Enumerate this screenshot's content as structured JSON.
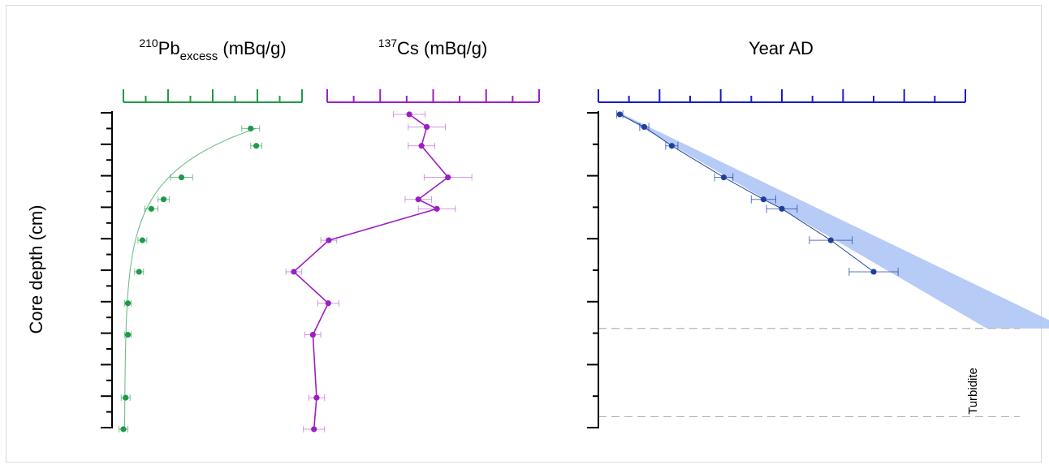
{
  "colors": {
    "pb": "#1f9a48",
    "cs": "#9b1fc2",
    "age": "#1a1acc",
    "age_points": "#1f3f9e",
    "band": "#a9c2f5",
    "axis": "#000000",
    "dash": "#b5b5b5"
  },
  "chart_data": [
    {
      "type": "scatter",
      "title_main": "Pb",
      "title_sup": "210",
      "title_sub": "excess",
      "title_unit": " (mBq/g)",
      "ylabel": "Core depth (cm)",
      "xlim": [
        0,
        80
      ],
      "ylim": [
        0,
        100
      ],
      "x_ticks": [
        "0",
        "20",
        "40",
        "60",
        "80"
      ],
      "y_ticks": [
        "0",
        "10",
        "20",
        "30",
        "40",
        "50",
        "60",
        "70",
        "80",
        "90",
        "100"
      ],
      "series": [
        {
          "depth": [
            5,
            10.5,
            20.5,
            27.5,
            30.5,
            40.5,
            50.5,
            60.5,
            70.5,
            90.5,
            100.5
          ],
          "value": [
            57,
            59.5,
            26,
            18,
            12.5,
            8.5,
            7,
            2,
            2,
            1,
            0
          ],
          "error": [
            4,
            2.5,
            5,
            2.5,
            3,
            2,
            2,
            1.5,
            1.5,
            2,
            2
          ]
        }
      ],
      "fit_curve": true
    },
    {
      "type": "line",
      "title_main": "Cs",
      "title_sup": "137",
      "title_unit": " (mBq/g)",
      "xlim": [
        0,
        4
      ],
      "ylim": [
        0,
        100
      ],
      "x_ticks": [
        "0",
        "1",
        "2",
        "3",
        "4"
      ],
      "series": [
        {
          "depth": [
            0.5,
            4.5,
            10.5,
            20.5,
            27.5,
            30.5,
            40.5,
            50.5,
            60.5,
            70.5,
            90.5,
            100.5
          ],
          "value": [
            1.55,
            1.88,
            1.78,
            2.28,
            1.72,
            2.07,
            0.03,
            -0.63,
            0.02,
            -0.27,
            -0.2,
            -0.25
          ],
          "error": [
            0.3,
            0.35,
            0.25,
            0.45,
            0.25,
            0.35,
            0.15,
            0.15,
            0.2,
            0.15,
            0.15,
            0.2
          ]
        }
      ]
    },
    {
      "type": "line",
      "title": "Year AD",
      "xlim": [
        2020,
        1900
      ],
      "ylim": [
        0,
        100
      ],
      "x_ticks": [
        "2020",
        "2000",
        "1980",
        "1960",
        "1940",
        "1920",
        "1900"
      ],
      "y_ticks": [
        "0",
        "20",
        "40",
        "60",
        "80",
        "100"
      ],
      "series": [
        {
          "depth": [
            0.5,
            4.5,
            10.5,
            20.5,
            27.5,
            30.5,
            40.5,
            50.5
          ],
          "year": [
            2013,
            2005,
            1996,
            1979,
            1966,
            1960,
            1944,
            1930
          ],
          "error": [
            1,
            1.5,
            2,
            3,
            4,
            5,
            7,
            8
          ]
        }
      ],
      "band": {
        "depth": [
          0,
          68.5
        ],
        "year_min": [
          2014,
          1893
        ],
        "year_max": [
          2013,
          1867
        ]
      },
      "turbidite": {
        "label": "Turbidite",
        "top": 68.5,
        "bottom": 96.5
      }
    }
  ]
}
